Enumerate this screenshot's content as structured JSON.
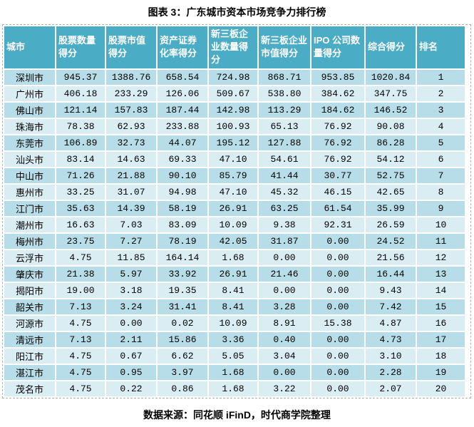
{
  "title": "图表 3：广东城市资本市场竞争力排行榜",
  "source_note": "数据来源：同花顺 iFinD，时代商学院整理",
  "colors": {
    "header_bg": "#4BACC6",
    "band_dark": "#B7DEE8",
    "band_light": "#D9EDF3",
    "header_text": "#FFFFFF",
    "body_text": "#000000",
    "dashed_border": "#B0B0B0"
  },
  "table": {
    "headers": [
      "城市",
      "股票数量得分",
      "股票市值得分",
      "资产证券化率得分",
      "新三板企业数量得分",
      "新三板企业市值得分",
      "IPO 公司数量得分",
      "综合得分",
      "排名"
    ],
    "rows": [
      [
        "深圳市",
        "945.37",
        "1388.76",
        "658.54",
        "724.98",
        "868.71",
        "953.85",
        "1020.84",
        "1"
      ],
      [
        "广州市",
        "406.18",
        "233.29",
        "126.06",
        "509.67",
        "538.80",
        "384.62",
        "347.75",
        "2"
      ],
      [
        "佛山市",
        "121.14",
        "157.83",
        "187.44",
        "142.98",
        "113.29",
        "184.62",
        "146.52",
        "3"
      ],
      [
        "珠海市",
        "78.38",
        "62.93",
        "233.88",
        "100.93",
        "65.13",
        "76.92",
        "90.08",
        "4"
      ],
      [
        "东莞市",
        "106.89",
        "32.73",
        "44.07",
        "195.12",
        "127.88",
        "76.92",
        "86.28",
        "5"
      ],
      [
        "汕头市",
        "83.14",
        "14.63",
        "69.33",
        "47.10",
        "54.61",
        "76.92",
        "54.12",
        "6"
      ],
      [
        "中山市",
        "71.26",
        "21.88",
        "90.10",
        "85.79",
        "41.44",
        "30.77",
        "52.75",
        "7"
      ],
      [
        "惠州市",
        "33.25",
        "31.07",
        "94.98",
        "47.10",
        "45.32",
        "46.15",
        "42.65",
        "8"
      ],
      [
        "江门市",
        "35.63",
        "14.39",
        "58.19",
        "26.91",
        "63.25",
        "61.54",
        "35.99",
        "9"
      ],
      [
        "潮州市",
        "16.63",
        "7.03",
        "83.09",
        "10.09",
        "9.38",
        "92.31",
        "26.59",
        "10"
      ],
      [
        "梅州市",
        "23.75",
        "7.27",
        "78.19",
        "42.05",
        "31.87",
        "0.00",
        "24.52",
        "11"
      ],
      [
        "云浮市",
        "4.75",
        "11.85",
        "164.14",
        "1.68",
        "0.00",
        "0.00",
        "21.56",
        "12"
      ],
      [
        "肇庆市",
        "21.38",
        "5.97",
        "33.92",
        "26.91",
        "21.46",
        "0.00",
        "16.44",
        "13"
      ],
      [
        "揭阳市",
        "19.00",
        "3.18",
        "19.35",
        "8.41",
        "0.00",
        "0.00",
        "9.43",
        "14"
      ],
      [
        "韶关市",
        "7.13",
        "3.24",
        "31.41",
        "8.41",
        "3.28",
        "0.00",
        "7.42",
        "15"
      ],
      [
        "河源市",
        "4.75",
        "0.00",
        "0.02",
        "10.09",
        "8.91",
        "15.38",
        "4.87",
        "16"
      ],
      [
        "清远市",
        "7.13",
        "2.11",
        "15.86",
        "3.36",
        "0.40",
        "0.00",
        "4.73",
        "17"
      ],
      [
        "阳江市",
        "4.75",
        "0.67",
        "6.62",
        "5.05",
        "3.04",
        "0.00",
        "3.10",
        "18"
      ],
      [
        "湛江市",
        "4.75",
        "0.95",
        "3.97",
        "1.68",
        "0.00",
        "0.00",
        "2.28",
        "19"
      ],
      [
        "茂名市",
        "4.75",
        "0.22",
        "0.86",
        "1.68",
        "3.22",
        "0.00",
        "2.07",
        "20"
      ]
    ]
  }
}
